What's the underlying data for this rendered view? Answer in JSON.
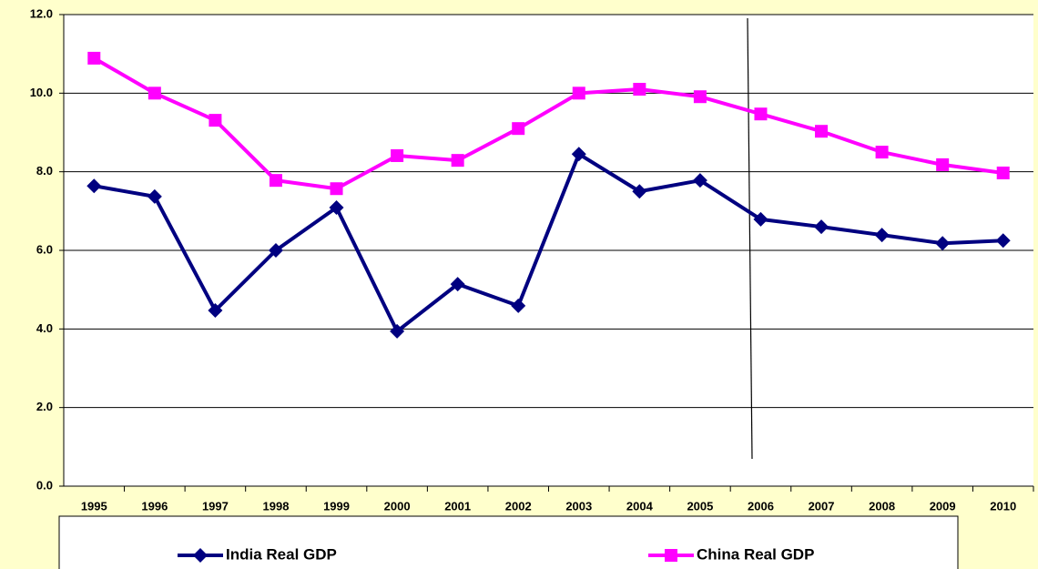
{
  "chart_data": {
    "type": "line",
    "categories": [
      "1995",
      "1996",
      "1997",
      "1998",
      "1999",
      "2000",
      "2001",
      "2002",
      "2003",
      "2004",
      "2005",
      "2006",
      "2007",
      "2008",
      "2009",
      "2010"
    ],
    "series": [
      {
        "name": "India Real GDP",
        "color": "#000080",
        "marker": "diamond",
        "values": [
          7.64,
          7.37,
          4.47,
          6.0,
          7.09,
          3.94,
          5.14,
          4.59,
          8.45,
          7.5,
          7.78,
          6.79,
          6.6,
          6.39,
          6.18,
          6.25
        ]
      },
      {
        "name": "China Real GDP",
        "color": "#ff00ff",
        "marker": "square",
        "values": [
          10.89,
          10.0,
          9.31,
          7.78,
          7.57,
          8.41,
          8.29,
          9.1,
          10.0,
          10.1,
          9.91,
          9.47,
          9.03,
          8.5,
          8.18,
          7.97
        ]
      }
    ],
    "ylim": [
      0,
      12
    ],
    "yticks": [
      {
        "value": 0,
        "label": "0.0"
      },
      {
        "value": 2,
        "label": "2.0"
      },
      {
        "value": 4,
        "label": "4.0"
      },
      {
        "value": 6,
        "label": "6.0"
      },
      {
        "value": 8,
        "label": "8.0"
      },
      {
        "value": 10,
        "label": "10.0"
      },
      {
        "value": 12,
        "label": "12.0"
      }
    ],
    "grid": true,
    "legend": "bottom"
  }
}
